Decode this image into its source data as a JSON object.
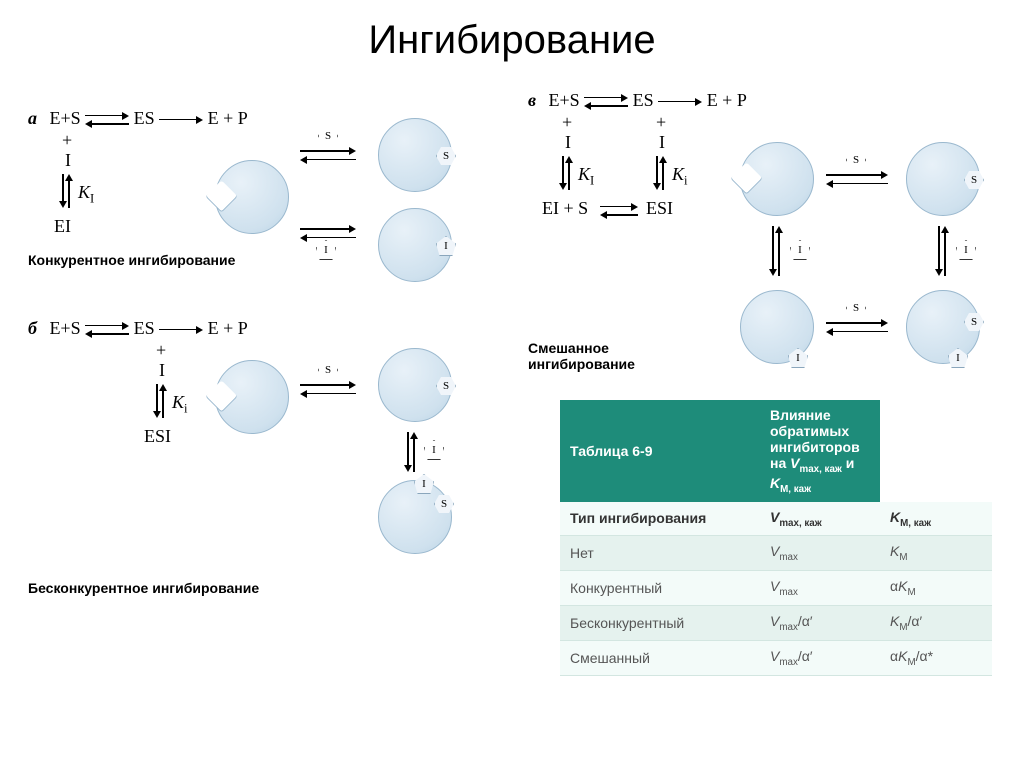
{
  "title": "Ингибирование",
  "panels": {
    "a": {
      "label": "а",
      "caption": "Конкурентное ингибирование",
      "eq_top": "E+S",
      "eq_es": "ES",
      "eq_ep": "E + P",
      "plus": "+",
      "inh": "I",
      "ki": "K",
      "ki_sub": "I",
      "bottom": "EI",
      "lig_s": "S",
      "lig_i": "I"
    },
    "b": {
      "label": "б",
      "caption": "Бесконкурентное ингибирование",
      "eq_top": "E+S",
      "eq_es": "ES",
      "eq_ep": "E + P",
      "plus": "+",
      "inh": "I",
      "ki": "K",
      "ki_sub": "i",
      "bottom": "ESI",
      "lig_s": "S",
      "lig_i": "I"
    },
    "c": {
      "label": "в",
      "caption": "Смешанное\nингибирование",
      "eq_top": "E+S",
      "eq_es": "ES",
      "eq_ep": "E + P",
      "plus": "+",
      "inh": "I",
      "ki1": "K",
      "ki1_sub": "I",
      "ki2": "K",
      "ki2_sub": "i",
      "bottom_l": "EI + S",
      "bottom_r": "ESI",
      "lig_s": "S",
      "lig_i": "I"
    }
  },
  "table": {
    "number": "Таблица 6-9",
    "title_pre": "Влияние обратимых ингибиторов",
    "title_on": "на ",
    "title_v": "V",
    "title_v_sub": "max, каж",
    "title_and": " и ",
    "title_k": "K",
    "title_k_sub": "M, каж",
    "col1": "Тип ингибирования",
    "col2_v": "V",
    "col2_sub": "max, каж",
    "col3_k": "K",
    "col3_sub": "M, каж",
    "rows": [
      {
        "name": "Нет",
        "v": "V",
        "v_sub": "max",
        "v_suf": "",
        "k_pre": "",
        "k": "K",
        "k_sub": "M",
        "k_suf": ""
      },
      {
        "name": "Конкурентный",
        "v": "V",
        "v_sub": "max",
        "v_suf": "",
        "k_pre": "α",
        "k": "K",
        "k_sub": "M",
        "k_suf": ""
      },
      {
        "name": "Бесконкурентный",
        "v": "V",
        "v_sub": "max",
        "v_suf": "/α′",
        "k_pre": "",
        "k": "K",
        "k_sub": "M",
        "k_suf": "/α′"
      },
      {
        "name": "Смешанный",
        "v": "V",
        "v_sub": "max",
        "v_suf": "/α′",
        "k_pre": "α",
        "k": "K",
        "k_sub": "M",
        "k_suf": "/α*"
      }
    ]
  },
  "colors": {
    "enzyme_fill": "#cfe1ee",
    "enzyme_border": "#9ab8ce",
    "table_header": "#1e8c7a",
    "table_sub": "#b9ddd4"
  }
}
